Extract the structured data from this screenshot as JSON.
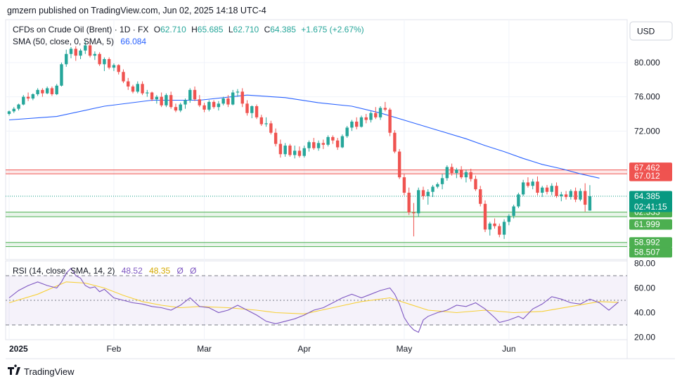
{
  "header": {
    "publisher": "gmzern published on TradingView.com, Jun 02, 2025 14:18 UTC-4"
  },
  "legend": {
    "symbol": "CFDs on Crude Oil (Brent) · 1D · FX",
    "open_label": "O",
    "open": "62.710",
    "high_label": "H",
    "high": "65.685",
    "low_label": "L",
    "low": "62.710",
    "close_label": "C",
    "close": "64.385",
    "change": "+1.675 (+2.67%)",
    "sma_label": "SMA (50, close, 0, SMA, 5)",
    "sma_value": "66.084"
  },
  "rsi_legend": {
    "label": "RSI (14, close, SMA, 14, 2)",
    "rsi_value": "48.52",
    "rsi_sma_value": "48.35",
    "extra1": "Ø",
    "extra2": "Ø"
  },
  "currency_button": "USD",
  "footer": {
    "brand": "TradingView"
  },
  "colors": {
    "up": "#26a69a",
    "down": "#ef5350",
    "sma": "#2962ff",
    "rsi": "#7e57c2",
    "rsi_ma": "#f7d038",
    "resistance": "#ef5350",
    "support": "#4caf50",
    "price_line": "#089981"
  },
  "chart_data": [
    {
      "type": "candlestick",
      "title": "CFDs on Crude Oil (Brent) · 1D · FX",
      "y_axis_ticks": [
        "80.000",
        "76.000",
        "72.000"
      ],
      "ylim": [
        57,
        85
      ],
      "x_axis_labels": [
        "2025",
        "Feb",
        "Mar",
        "Apr",
        "May",
        "Jun"
      ],
      "x_axis_label_bars": [
        0,
        22,
        41,
        62,
        83,
        105
      ],
      "last_price": "64.385",
      "countdown": "02:41:15",
      "candles": [
        [
          74.0,
          74.4,
          73.8,
          74.3
        ],
        [
          74.3,
          74.8,
          74.1,
          74.6
        ],
        [
          74.6,
          75.2,
          74.4,
          75.1
        ],
        [
          75.1,
          76.2,
          75.0,
          76.0
        ],
        [
          76.0,
          76.5,
          75.5,
          75.8
        ],
        [
          75.8,
          76.4,
          75.6,
          76.3
        ],
        [
          76.3,
          77.0,
          76.1,
          76.8
        ],
        [
          76.8,
          77.0,
          76.0,
          76.4
        ],
        [
          76.4,
          77.2,
          76.3,
          77.0
        ],
        [
          77.0,
          77.2,
          76.1,
          76.3
        ],
        [
          76.3,
          77.5,
          76.2,
          77.3
        ],
        [
          77.3,
          80.0,
          77.2,
          79.8
        ],
        [
          79.8,
          81.5,
          79.5,
          81.0
        ],
        [
          81.0,
          81.8,
          80.5,
          81.6
        ],
        [
          81.6,
          81.9,
          80.2,
          80.8
        ],
        [
          80.8,
          81.6,
          80.4,
          81.4
        ],
        [
          81.4,
          82.5,
          81.0,
          82.0
        ],
        [
          82.0,
          82.5,
          80.6,
          80.8
        ],
        [
          80.8,
          81.3,
          80.3,
          81.0
        ],
        [
          81.0,
          81.2,
          79.6,
          79.8
        ],
        [
          79.8,
          80.6,
          79.0,
          80.4
        ],
        [
          80.4,
          80.6,
          79.2,
          79.4
        ],
        [
          79.4,
          79.9,
          79.0,
          79.7
        ],
        [
          79.7,
          79.8,
          78.6,
          78.9
        ],
        [
          78.9,
          79.2,
          77.6,
          77.8
        ],
        [
          77.8,
          78.2,
          76.8,
          77.2
        ],
        [
          77.2,
          77.4,
          76.4,
          76.6
        ],
        [
          76.6,
          77.8,
          76.4,
          77.5
        ],
        [
          77.5,
          77.8,
          76.2,
          76.4
        ],
        [
          76.4,
          76.8,
          76.0,
          76.5
        ],
        [
          76.5,
          76.6,
          75.5,
          75.7
        ],
        [
          75.7,
          76.2,
          75.2,
          76.0
        ],
        [
          76.0,
          76.5,
          74.8,
          75.0
        ],
        [
          75.0,
          76.4,
          74.8,
          76.2
        ],
        [
          76.2,
          76.6,
          74.6,
          74.8
        ],
        [
          74.8,
          75.2,
          74.2,
          74.4
        ],
        [
          74.4,
          75.3,
          74.2,
          75.1
        ],
        [
          75.1,
          75.8,
          74.6,
          75.6
        ],
        [
          75.6,
          77.0,
          75.3,
          76.8
        ],
        [
          76.8,
          77.2,
          75.5,
          75.7
        ],
        [
          75.7,
          76.2,
          74.8,
          75.0
        ],
        [
          75.0,
          75.3,
          74.2,
          74.5
        ],
        [
          74.5,
          75.6,
          74.3,
          75.4
        ],
        [
          75.4,
          75.6,
          74.6,
          74.8
        ],
        [
          74.8,
          75.5,
          74.4,
          75.2
        ],
        [
          75.2,
          76.0,
          75.0,
          75.8
        ],
        [
          75.8,
          76.2,
          74.8,
          75.1
        ],
        [
          75.1,
          76.8,
          75.0,
          76.5
        ],
        [
          76.5,
          76.9,
          76.0,
          76.6
        ],
        [
          76.6,
          77.0,
          74.8,
          75.2
        ],
        [
          75.2,
          75.6,
          73.8,
          74.1
        ],
        [
          74.1,
          75.0,
          73.5,
          74.9
        ],
        [
          74.9,
          75.1,
          73.4,
          73.6
        ],
        [
          73.6,
          73.9,
          72.6,
          72.8
        ],
        [
          72.8,
          73.6,
          72.5,
          72.9
        ],
        [
          72.9,
          73.2,
          71.6,
          71.8
        ],
        [
          71.8,
          72.3,
          70.2,
          70.5
        ],
        [
          70.5,
          71.0,
          68.9,
          69.3
        ],
        [
          69.3,
          70.6,
          69.0,
          70.3
        ],
        [
          70.3,
          70.5,
          69.0,
          69.2
        ],
        [
          69.2,
          70.3,
          68.8,
          69.7
        ],
        [
          69.7,
          70.2,
          68.9,
          69.1
        ],
        [
          69.1,
          70.3,
          68.9,
          70.0
        ],
        [
          70.0,
          70.9,
          69.6,
          70.7
        ],
        [
          70.7,
          71.2,
          69.8,
          70.0
        ],
        [
          70.0,
          70.9,
          69.7,
          70.6
        ],
        [
          70.6,
          71.0,
          69.9,
          70.4
        ],
        [
          70.4,
          71.5,
          70.2,
          71.3
        ],
        [
          71.3,
          71.5,
          70.5,
          70.9
        ],
        [
          70.9,
          71.2,
          69.8,
          70.1
        ],
        [
          70.1,
          71.6,
          70.0,
          71.4
        ],
        [
          71.4,
          72.6,
          71.2,
          72.4
        ],
        [
          72.4,
          73.3,
          72.0,
          73.1
        ],
        [
          73.1,
          73.6,
          72.2,
          72.5
        ],
        [
          72.5,
          73.8,
          72.4,
          73.6
        ],
        [
          73.6,
          74.0,
          72.9,
          73.3
        ],
        [
          73.3,
          74.3,
          73.0,
          74.1
        ],
        [
          74.1,
          74.8,
          73.4,
          73.6
        ],
        [
          73.6,
          74.9,
          73.3,
          74.7
        ],
        [
          74.7,
          75.4,
          74.3,
          74.5
        ],
        [
          74.5,
          74.7,
          71.4,
          71.8
        ],
        [
          71.8,
          72.1,
          69.4,
          69.6
        ],
        [
          69.6,
          69.9,
          66.4,
          66.6
        ],
        [
          66.6,
          67.0,
          64.5,
          64.8
        ],
        [
          64.8,
          65.4,
          62.2,
          62.5
        ],
        [
          62.5,
          63.6,
          59.7,
          62.4
        ],
        [
          62.4,
          65.4,
          62.0,
          65.1
        ],
        [
          65.1,
          65.5,
          64.0,
          64.4
        ],
        [
          64.4,
          65.2,
          63.4,
          64.9
        ],
        [
          64.9,
          65.7,
          64.3,
          65.5
        ],
        [
          65.5,
          66.0,
          65.3,
          65.8
        ],
        [
          65.8,
          67.0,
          65.2,
          66.5
        ],
        [
          66.5,
          68.0,
          66.2,
          67.8
        ],
        [
          67.8,
          68.2,
          66.8,
          67.1
        ],
        [
          67.1,
          67.7,
          66.5,
          67.5
        ],
        [
          67.5,
          67.9,
          66.4,
          66.6
        ],
        [
          66.6,
          67.5,
          66.0,
          67.2
        ],
        [
          67.2,
          67.6,
          66.1,
          66.4
        ],
        [
          66.4,
          66.8,
          65.0,
          65.2
        ],
        [
          65.2,
          65.6,
          63.2,
          63.5
        ],
        [
          63.5,
          63.9,
          60.2,
          60.5
        ],
        [
          60.5,
          61.4,
          59.8,
          61.2
        ],
        [
          61.2,
          61.8,
          60.6,
          60.9
        ],
        [
          60.9,
          61.2,
          59.6,
          59.9
        ],
        [
          59.9,
          61.7,
          59.4,
          61.4
        ],
        [
          61.4,
          62.3,
          61.0,
          62.1
        ],
        [
          62.1,
          63.4,
          61.8,
          63.2
        ],
        [
          63.2,
          64.8,
          63.0,
          64.6
        ],
        [
          64.6,
          66.3,
          64.4,
          66.0
        ],
        [
          66.0,
          66.6,
          65.4,
          65.6
        ],
        [
          65.6,
          66.4,
          65.2,
          66.1
        ],
        [
          66.1,
          66.7,
          64.5,
          64.8
        ],
        [
          64.8,
          65.6,
          64.3,
          65.4
        ],
        [
          65.4,
          65.7,
          64.6,
          64.9
        ],
        [
          64.9,
          65.9,
          64.5,
          65.6
        ],
        [
          65.6,
          66.0,
          64.2,
          64.4
        ],
        [
          64.4,
          64.9,
          63.8,
          64.6
        ],
        [
          64.6,
          65.0,
          64.0,
          64.3
        ],
        [
          64.3,
          65.2,
          64.0,
          65.0
        ],
        [
          65.0,
          65.4,
          63.7,
          64.0
        ],
        [
          64.0,
          65.3,
          63.8,
          65.0
        ],
        [
          65.0,
          65.9,
          62.6,
          63.4
        ],
        [
          62.71,
          65.685,
          62.71,
          64.385
        ]
      ],
      "sma": [
        [
          0,
          73.3
        ],
        [
          10,
          73.7
        ],
        [
          20,
          74.9
        ],
        [
          30,
          75.6
        ],
        [
          40,
          75.6
        ],
        [
          50,
          76.2
        ],
        [
          58,
          75.9
        ],
        [
          65,
          75.3
        ],
        [
          72,
          74.9
        ],
        [
          78,
          74.1
        ],
        [
          84,
          73.1
        ],
        [
          90,
          72.1
        ],
        [
          96,
          71.1
        ],
        [
          100,
          70.3
        ],
        [
          104,
          69.6
        ],
        [
          108,
          68.8
        ],
        [
          112,
          68.1
        ],
        [
          116,
          67.6
        ],
        [
          120,
          67.0
        ],
        [
          124,
          66.5
        ]
      ],
      "levels": [
        {
          "label": "67.462",
          "value": 67.462,
          "kind": "resistance"
        },
        {
          "label": "67.012",
          "value": 67.012,
          "kind": "resistance"
        },
        {
          "label": "62.533",
          "value": 62.533,
          "kind": "support"
        },
        {
          "label": "61.999",
          "value": 61.999,
          "kind": "support"
        },
        {
          "label": "58.992",
          "value": 58.992,
          "kind": "support"
        },
        {
          "label": "58.507",
          "value": 58.507,
          "kind": "support"
        }
      ]
    },
    {
      "type": "line",
      "title": "RSI (14, close, SMA, 14, 2)",
      "y_axis_ticks": [
        "80.00",
        "60.00",
        "40.00",
        "20.00"
      ],
      "ylim": [
        18,
        82
      ],
      "bands": [
        30,
        50,
        70
      ],
      "rsi": [
        [
          0,
          52
        ],
        [
          2,
          58
        ],
        [
          4,
          62
        ],
        [
          6,
          65
        ],
        [
          8,
          62
        ],
        [
          10,
          60
        ],
        [
          11,
          65
        ],
        [
          12,
          72
        ],
        [
          13,
          76
        ],
        [
          14,
          70
        ],
        [
          15,
          68
        ],
        [
          16,
          62
        ],
        [
          17,
          60
        ],
        [
          18,
          61
        ],
        [
          19,
          57
        ],
        [
          20,
          59
        ],
        [
          22,
          52
        ],
        [
          24,
          50
        ],
        [
          26,
          48
        ],
        [
          28,
          47
        ],
        [
          30,
          45
        ],
        [
          32,
          44
        ],
        [
          34,
          42
        ],
        [
          36,
          46
        ],
        [
          38,
          52
        ],
        [
          40,
          45
        ],
        [
          42,
          44
        ],
        [
          44,
          40
        ],
        [
          46,
          42
        ],
        [
          48,
          46
        ],
        [
          50,
          42
        ],
        [
          52,
          38
        ],
        [
          54,
          33
        ],
        [
          56,
          31
        ],
        [
          58,
          33
        ],
        [
          60,
          35
        ],
        [
          62,
          38
        ],
        [
          64,
          42
        ],
        [
          66,
          44
        ],
        [
          68,
          48
        ],
        [
          70,
          52
        ],
        [
          72,
          55
        ],
        [
          74,
          52
        ],
        [
          76,
          55
        ],
        [
          78,
          58
        ],
        [
          80,
          60
        ],
        [
          81,
          55
        ],
        [
          82,
          47
        ],
        [
          83,
          36
        ],
        [
          84,
          30
        ],
        [
          85,
          26
        ],
        [
          86,
          24
        ],
        [
          87,
          34
        ],
        [
          88,
          37
        ],
        [
          90,
          40
        ],
        [
          92,
          42
        ],
        [
          94,
          46
        ],
        [
          96,
          45
        ],
        [
          98,
          48
        ],
        [
          100,
          43
        ],
        [
          102,
          36
        ],
        [
          103,
          32
        ],
        [
          105,
          34
        ],
        [
          107,
          37
        ],
        [
          108,
          35
        ],
        [
          110,
          43
        ],
        [
          112,
          47
        ],
        [
          114,
          53
        ],
        [
          116,
          51
        ],
        [
          118,
          48
        ],
        [
          120,
          47
        ],
        [
          122,
          51
        ],
        [
          124,
          48
        ],
        [
          126,
          42
        ],
        [
          128,
          48.5
        ]
      ],
      "rsi_sma": [
        [
          0,
          48
        ],
        [
          6,
          55
        ],
        [
          12,
          65
        ],
        [
          16,
          64
        ],
        [
          20,
          60
        ],
        [
          24,
          54
        ],
        [
          28,
          49
        ],
        [
          32,
          46
        ],
        [
          36,
          44
        ],
        [
          40,
          45
        ],
        [
          46,
          44
        ],
        [
          52,
          42
        ],
        [
          56,
          40
        ],
        [
          62,
          39
        ],
        [
          68,
          44
        ],
        [
          74,
          49
        ],
        [
          80,
          52
        ],
        [
          84,
          47
        ],
        [
          88,
          42
        ],
        [
          94,
          40
        ],
        [
          100,
          42
        ],
        [
          106,
          40
        ],
        [
          112,
          41
        ],
        [
          118,
          45
        ],
        [
          124,
          49
        ],
        [
          128,
          48.35
        ]
      ]
    }
  ]
}
